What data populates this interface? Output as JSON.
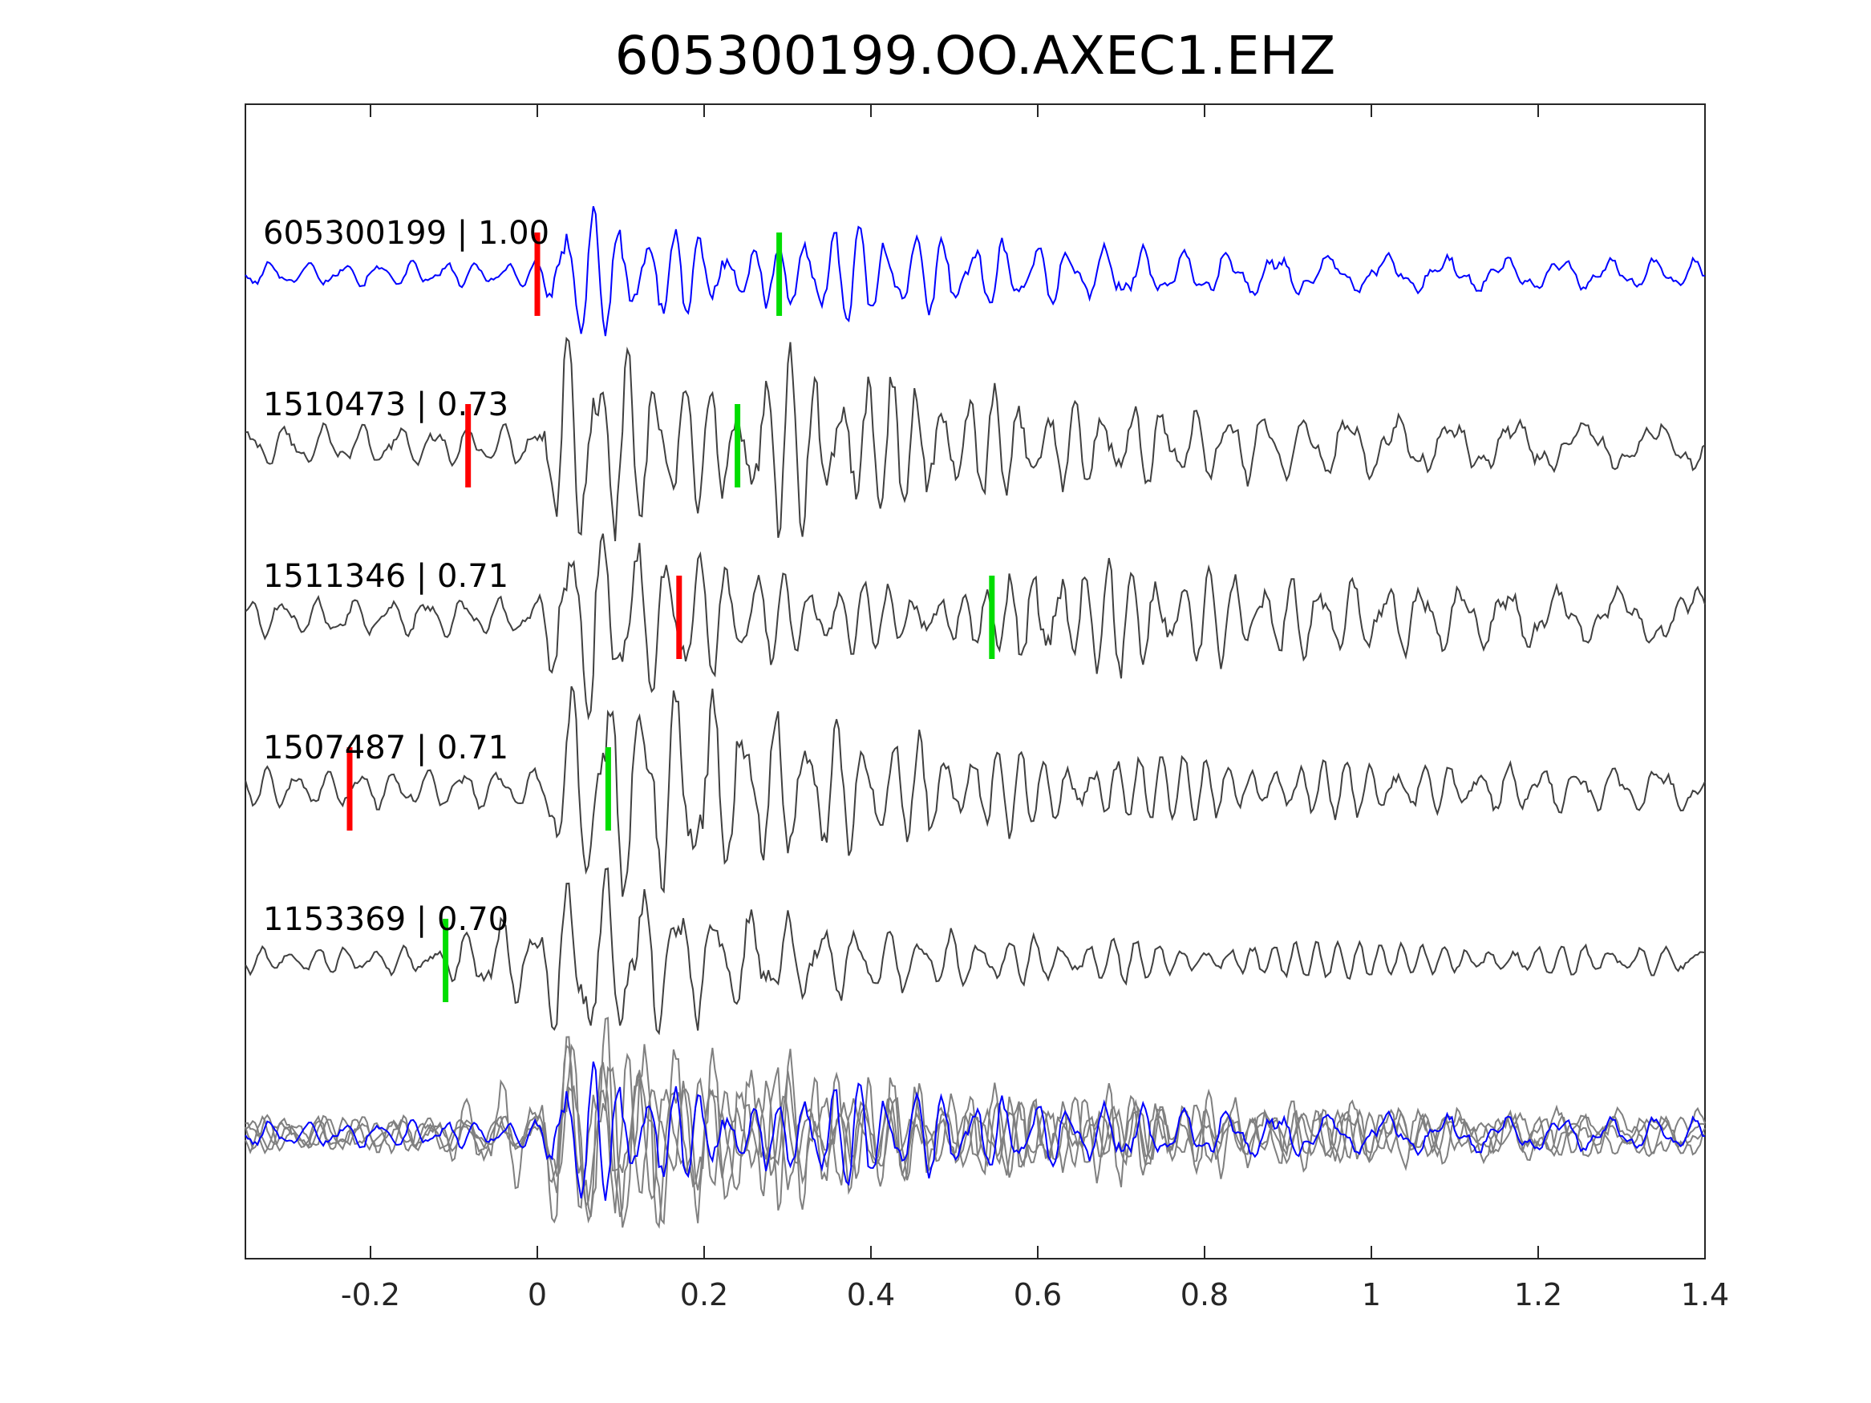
{
  "chart_data": {
    "type": "line",
    "title": "605300199.OO.AXEC1.EHZ",
    "xlabel": "",
    "ylabel": "",
    "xlim": [
      -0.35,
      1.4
    ],
    "xticks": [
      -0.2,
      0,
      0.2,
      0.4,
      0.6,
      0.8,
      1,
      1.2,
      1.4
    ],
    "xtick_labels": [
      "-0.2",
      "0",
      "0.2",
      "0.4",
      "0.6",
      "0.8",
      "1",
      "1.2",
      "1.4"
    ],
    "grid": false,
    "legend": "none",
    "colors": {
      "template": "#0000ff",
      "trace": "#404040",
      "stack": "#808080",
      "p_pick": "#ff0000",
      "s_pick": "#00dd00"
    },
    "series": [
      {
        "label": "605300199 | 1.00",
        "id": "605300199",
        "cc": 1.0,
        "p_pick": 0.0,
        "s_pick": 0.29,
        "color": "template"
      },
      {
        "label": "1510473 | 0.73",
        "id": "1510473",
        "cc": 0.73,
        "p_pick": -0.083,
        "s_pick": 0.24,
        "color": "trace"
      },
      {
        "label": "1511346 | 0.71",
        "id": "1511346",
        "cc": 0.71,
        "p_pick": 0.17,
        "s_pick": 0.545,
        "color": "trace"
      },
      {
        "label": "1507487 | 0.71",
        "id": "1507487",
        "cc": 0.71,
        "p_pick": -0.225,
        "s_pick": 0.085,
        "color": "trace"
      },
      {
        "label": "1153369 | 0.70",
        "id": "1153369",
        "cc": 0.7,
        "p_pick": null,
        "s_pick": -0.11,
        "color": "trace"
      }
    ],
    "overlay": {
      "description_visible": false,
      "includes_all_series": true
    }
  }
}
